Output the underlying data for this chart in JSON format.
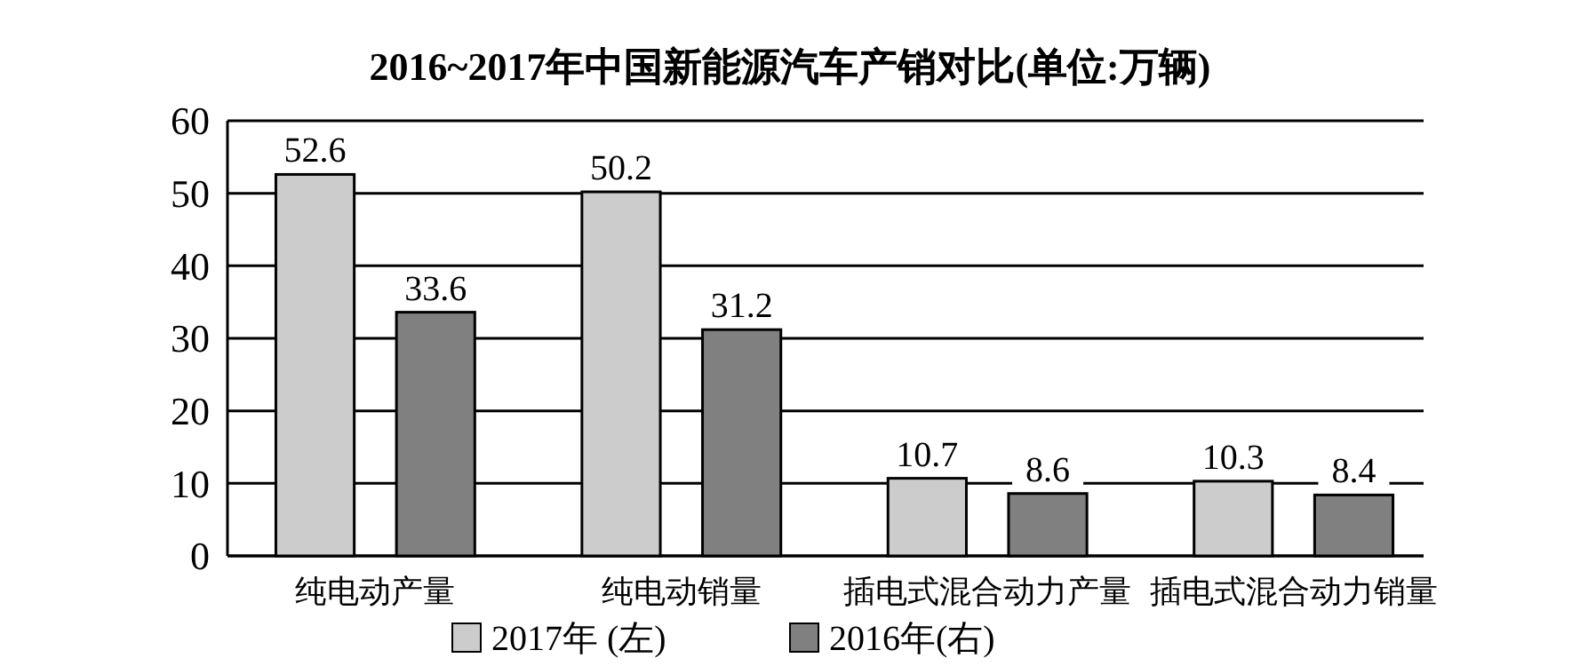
{
  "chart_data": {
    "type": "bar",
    "title": "2016~2017年中国新能源汽车产销对比(单位:万辆)",
    "categories": [
      "纯电动产量",
      "纯电动销量",
      "插电式混合动力产量",
      "插电式混合动力销量"
    ],
    "series": [
      {
        "name": "2017年 (左)",
        "color": "#cccccc",
        "values": [
          52.6,
          50.2,
          10.7,
          10.3
        ]
      },
      {
        "name": "2016年(右)",
        "color": "#808080",
        "values": [
          33.6,
          31.2,
          8.6,
          8.4
        ]
      }
    ],
    "ylim": [
      0,
      60
    ],
    "yticks": [
      0,
      10,
      20,
      30,
      40,
      50,
      60
    ],
    "grid": "y",
    "data_labels": true,
    "legend": "bottom"
  }
}
